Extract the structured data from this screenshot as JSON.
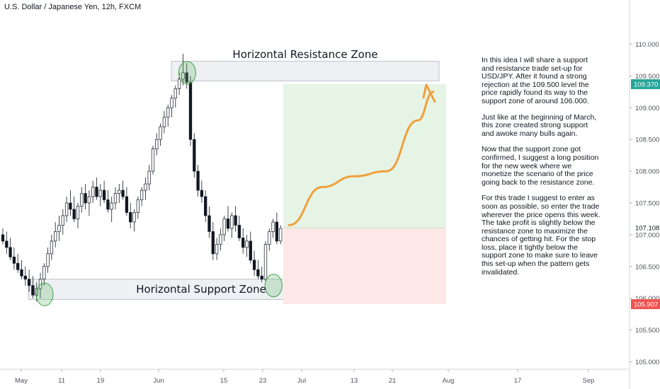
{
  "header": {
    "symbol_title": "U.S. Dollar / Japanese Yen, 12h, FXCM"
  },
  "annotations": {
    "resistance_zone_label": "Horizontal Resistance Zone",
    "support_zone_label": "Horizontal Support Zone"
  },
  "note": {
    "paragraphs": [
      "In this idea I will share a support and resistance trade set-up for USD/JPY. After it found a strong rejection at the 109.500 level the price rapidly found its way to the support zone of around 106.000.",
      "Just like at the beginning of March, this zone created strong support and awoke many bulls again.",
      "Now that the support zone got confirmed, I suggest a long position for the new week where we monetize the scenario of the price going back to the resistance zone.",
      "For this trade I suggest to enter as soon as possible, so enter the trade wherever the price opens this week. The take profit is slightly below the resistance zone to maximize the chances of getting hit. For the stop loss, place it tightly below the support zone to make sure to leave this set-up when the pattern gets invalidated."
    ]
  },
  "chart_data": {
    "type": "candlestick",
    "title": "U.S. Dollar / Japanese Yen, 12h, FXCM",
    "y_axis": {
      "side": "right",
      "ticks": [
        "110.000",
        "109.500",
        "109.000",
        "108.500",
        "108.000",
        "107.500",
        "107.000",
        "106.500",
        "106.000",
        "105.500",
        "105.000"
      ],
      "ylim": [
        104.95,
        110.25
      ]
    },
    "x_axis": {
      "ticks": [
        "May",
        "11",
        "19",
        "Jun",
        "15",
        "23",
        "Jul",
        "13",
        "21",
        "Aug",
        "17",
        "Sep"
      ]
    },
    "price_tags": [
      {
        "value": "109.370",
        "color": "#26a69a"
      },
      {
        "value": "107.108",
        "color": "#131722",
        "style": "plain"
      },
      {
        "value": "105.907",
        "color": "#ef5350"
      }
    ],
    "zones": [
      {
        "name": "resistance",
        "low": 109.42,
        "high": 109.73,
        "from_candle": 48,
        "to_date": "Jul 27",
        "color": "#e6e8ee"
      },
      {
        "name": "support",
        "low": 105.98,
        "high": 106.3,
        "from_candle": 0,
        "to_date": "Jul 27",
        "color": "#e6e8ee"
      }
    ],
    "position": {
      "type": "long",
      "entry": 107.108,
      "take_profit": 109.37,
      "stop_loss": 105.907,
      "profit_color": "#e6f4e6",
      "loss_color": "#fde7e7"
    },
    "projection": {
      "color": "#f0a03c",
      "points": [
        {
          "t": "Jun 29",
          "v": 107.15
        },
        {
          "t": "Jul 6",
          "v": 107.75
        },
        {
          "t": "Jul 13",
          "v": 107.92
        },
        {
          "t": "Jul 20",
          "v": 108.0
        },
        {
          "t": "Jul 27",
          "v": 108.8
        },
        {
          "t": "Jul 30",
          "v": 109.25
        }
      ]
    },
    "highlight_circles": [
      {
        "candle": 48,
        "value": 109.55
      },
      {
        "candle": 10,
        "value": 106.06
      },
      {
        "candle": 71,
        "value": 106.2
      }
    ],
    "candles": [
      [
        107.0,
        107.1,
        106.85,
        106.9
      ],
      [
        106.9,
        107.05,
        106.7,
        106.8
      ],
      [
        106.8,
        106.95,
        106.6,
        106.65
      ],
      [
        106.65,
        106.8,
        106.45,
        106.55
      ],
      [
        106.55,
        106.7,
        106.4,
        106.45
      ],
      [
        106.45,
        106.6,
        106.3,
        106.35
      ],
      [
        106.35,
        106.5,
        106.2,
        106.3
      ],
      [
        106.3,
        106.45,
        106.1,
        106.2
      ],
      [
        106.2,
        106.35,
        106.0,
        106.05
      ],
      [
        106.05,
        106.25,
        105.95,
        106.15
      ],
      [
        106.15,
        106.4,
        106.0,
        106.3
      ],
      [
        106.3,
        106.55,
        106.2,
        106.5
      ],
      [
        106.5,
        106.8,
        106.4,
        106.7
      ],
      [
        106.7,
        107.0,
        106.6,
        106.9
      ],
      [
        106.9,
        107.2,
        106.8,
        107.05
      ],
      [
        107.05,
        107.3,
        106.9,
        107.15
      ],
      [
        107.15,
        107.4,
        107.0,
        107.3
      ],
      [
        107.3,
        107.6,
        107.2,
        107.5
      ],
      [
        107.5,
        107.7,
        107.3,
        107.4
      ],
      [
        107.4,
        107.6,
        107.2,
        107.25
      ],
      [
        107.25,
        107.5,
        107.1,
        107.45
      ],
      [
        107.45,
        107.75,
        107.35,
        107.65
      ],
      [
        107.65,
        107.8,
        107.4,
        107.5
      ],
      [
        107.5,
        107.7,
        107.3,
        107.6
      ],
      [
        107.6,
        107.85,
        107.5,
        107.75
      ],
      [
        107.75,
        107.9,
        107.55,
        107.6
      ],
      [
        107.6,
        107.8,
        107.45,
        107.7
      ],
      [
        107.7,
        107.85,
        107.5,
        107.55
      ],
      [
        107.55,
        107.7,
        107.35,
        107.4
      ],
      [
        107.4,
        107.6,
        107.2,
        107.5
      ],
      [
        107.5,
        107.75,
        107.4,
        107.65
      ],
      [
        107.65,
        107.8,
        107.5,
        107.7
      ],
      [
        107.7,
        107.85,
        107.55,
        107.6
      ],
      [
        107.6,
        107.75,
        107.3,
        107.35
      ],
      [
        107.35,
        107.5,
        107.1,
        107.2
      ],
      [
        107.2,
        107.4,
        107.05,
        107.35
      ],
      [
        107.35,
        107.6,
        107.25,
        107.55
      ],
      [
        107.55,
        107.75,
        107.45,
        107.7
      ],
      [
        107.7,
        107.9,
        107.55,
        107.8
      ],
      [
        107.8,
        108.1,
        107.7,
        108.0
      ],
      [
        108.0,
        108.4,
        107.95,
        108.35
      ],
      [
        108.35,
        108.6,
        108.25,
        108.5
      ],
      [
        108.5,
        108.75,
        108.4,
        108.7
      ],
      [
        108.7,
        108.95,
        108.6,
        108.85
      ],
      [
        108.85,
        109.05,
        108.7,
        109.0
      ],
      [
        109.0,
        109.2,
        108.85,
        109.15
      ],
      [
        109.15,
        109.35,
        109.0,
        109.3
      ],
      [
        109.3,
        109.55,
        109.2,
        109.45
      ],
      [
        109.45,
        109.85,
        109.35,
        109.55
      ],
      [
        109.55,
        109.7,
        109.3,
        109.4
      ],
      [
        109.4,
        109.5,
        108.4,
        108.5
      ],
      [
        108.5,
        108.6,
        107.9,
        108.0
      ],
      [
        108.0,
        108.1,
        107.6,
        107.7
      ],
      [
        107.7,
        107.85,
        107.5,
        107.6
      ],
      [
        107.6,
        107.7,
        107.2,
        107.3
      ],
      [
        107.3,
        107.45,
        106.95,
        107.05
      ],
      [
        107.05,
        107.2,
        106.6,
        106.7
      ],
      [
        106.7,
        106.95,
        106.6,
        106.85
      ],
      [
        106.85,
        107.1,
        106.75,
        107.0
      ],
      [
        107.0,
        107.3,
        106.9,
        107.25
      ],
      [
        107.25,
        107.45,
        107.05,
        107.1
      ],
      [
        107.1,
        107.35,
        106.95,
        107.3
      ],
      [
        107.3,
        107.45,
        107.05,
        107.15
      ],
      [
        107.15,
        107.3,
        106.9,
        106.95
      ],
      [
        106.95,
        107.1,
        106.7,
        106.8
      ],
      [
        106.8,
        107.0,
        106.65,
        106.9
      ],
      [
        106.9,
        107.05,
        106.55,
        106.6
      ],
      [
        106.6,
        106.75,
        106.35,
        106.45
      ],
      [
        106.45,
        106.6,
        106.3,
        106.35
      ],
      [
        106.35,
        106.5,
        106.25,
        106.3
      ],
      [
        106.3,
        106.9,
        106.25,
        106.85
      ],
      [
        106.85,
        107.1,
        106.75,
        107.05
      ],
      [
        107.05,
        107.25,
        106.95,
        107.2
      ],
      [
        107.2,
        107.35,
        106.85,
        106.9
      ],
      [
        106.9,
        107.15,
        106.85,
        107.1
      ]
    ]
  }
}
